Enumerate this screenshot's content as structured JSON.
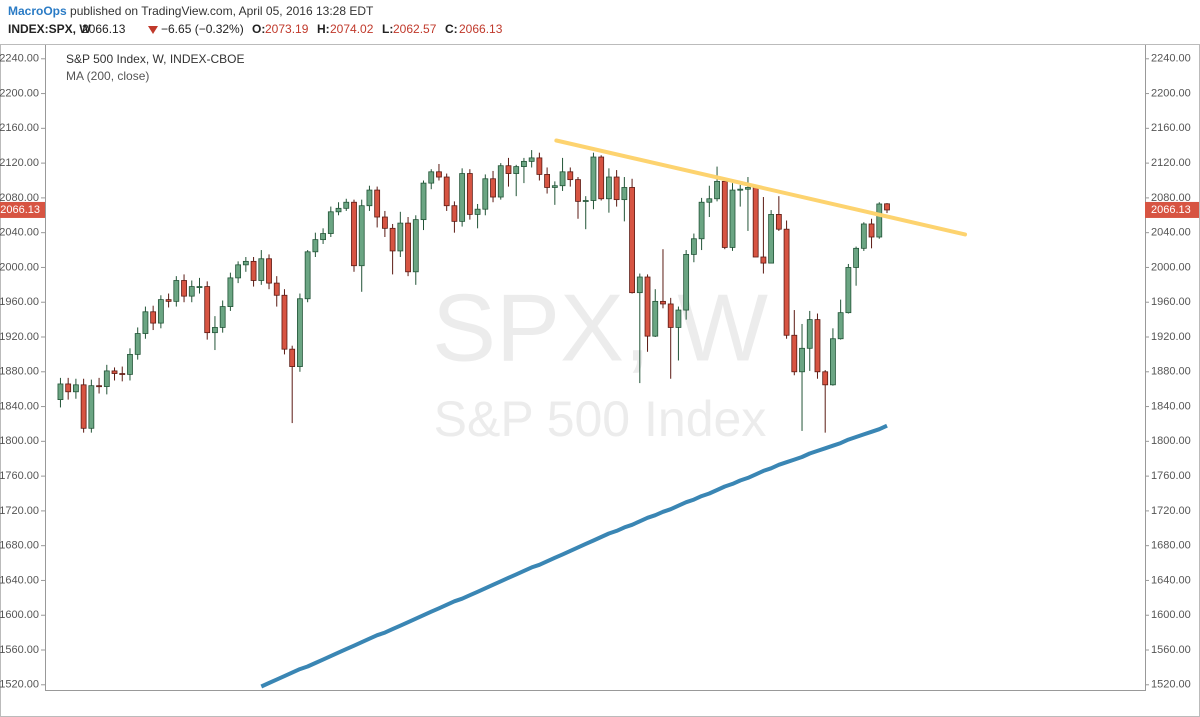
{
  "chart_data": {
    "type": "candlestick",
    "header": {
      "publisher": "MacroOps",
      "published": "published on TradingView.com, April 05, 2016 13:28 EDT",
      "symbol": "INDEX:SPX, W",
      "change": "−6.65 (−0.32%)",
      "o": "O:",
      "h": "H:",
      "l": "L:",
      "c": "C:"
    },
    "title": "S&P 500 Index, W, INDEX-CBOE",
    "watermark": {
      "symbol": "SPX, W",
      "name": "S&P 500 Index"
    },
    "up_color": "#6ba583",
    "down_color": "#d75442",
    "open": [
      1848,
      1866,
      1857,
      1865,
      1815,
      1864,
      1863,
      1881,
      1878,
      1877,
      1900,
      1924,
      1949,
      1936,
      1963,
      1961,
      1985,
      1967,
      1978,
      1978,
      1925,
      1931,
      1955,
      1988,
      2003,
      2007,
      1985,
      2010,
      1982,
      1968,
      1906,
      1886,
      1964,
      2018,
      2032,
      2039,
      2064,
      2068,
      2075,
      2002,
      2071,
      2089,
      2058,
      2045,
      2019,
      2051,
      1995,
      2055,
      2097,
      2110,
      2104,
      2071,
      2053,
      2108,
      2061,
      2067,
      2102,
      2081,
      2117,
      2108,
      2116,
      2122,
      2126,
      2107,
      2092,
      2094,
      2110,
      2101,
      2076,
      2077,
      2127,
      2079,
      2104,
      2078,
      2092,
      1971,
      1989,
      1921,
      1961,
      1958,
      1931,
      1951,
      2015,
      2033,
      2075,
      2079,
      2099,
      2023,
      2089,
      2090,
      2092,
      2012,
      2005,
      2061,
      2044,
      1922,
      1880,
      1907,
      1940,
      1880,
      1865,
      1918,
      1948,
      2000,
      2022,
      2050,
      2035,
      2073.19
    ],
    "high": [
      1873,
      1873,
      1872,
      1872,
      1871,
      1873,
      1888,
      1885,
      1886,
      1907,
      1931,
      1955,
      1956,
      1968,
      1970,
      1990,
      1992,
      1985,
      1988,
      1984,
      1944,
      1962,
      1994,
      2007,
      2012,
      2012,
      2020,
      2015,
      1990,
      1975,
      1910,
      1970,
      2020,
      2040,
      2045,
      2070,
      2075,
      2079,
      2078,
      2078,
      2094,
      2093,
      2065,
      2050,
      2064,
      2058,
      2060,
      2100,
      2113,
      2119,
      2108,
      2076,
      2114,
      2113,
      2073,
      2107,
      2111,
      2120,
      2126,
      2118,
      2126,
      2135,
      2132,
      2115,
      2099,
      2126,
      2115,
      2104,
      2082,
      2132,
      2129,
      2114,
      2112,
      2104,
      2102,
      1993,
      1992,
      1975,
      2021,
      1965,
      1955,
      2020,
      2039,
      2080,
      2094,
      2116,
      2101,
      2097,
      2095,
      2104,
      2094,
      2081,
      2066,
      2082,
      2054,
      1951,
      1935,
      1950,
      1947,
      1882,
      1930,
      1963,
      2004,
      2024,
      2052,
      2056,
      2075,
      2074.02
    ],
    "low": [
      1839,
      1848,
      1849,
      1810,
      1810,
      1855,
      1854,
      1870,
      1869,
      1870,
      1894,
      1918,
      1928,
      1930,
      1954,
      1955,
      1960,
      1960,
      1970,
      1917,
      1905,
      1925,
      1950,
      1982,
      1995,
      1978,
      1980,
      1975,
      1955,
      1900,
      1821,
      1880,
      1960,
      2012,
      2027,
      2035,
      2060,
      2065,
      1995,
      1972,
      2065,
      2046,
      2035,
      1992,
      2012,
      1990,
      1980,
      2043,
      2090,
      2100,
      2065,
      2040,
      2047,
      2055,
      2045,
      2060,
      2075,
      2078,
      2093,
      2082,
      2097,
      2115,
      2100,
      2085,
      2072,
      2088,
      2093,
      2056,
      2044,
      2067,
      2077,
      2063,
      2070,
      2053,
      1970,
      1867,
      1903,
      1920,
      1953,
      1872,
      1893,
      1940,
      2006,
      2020,
      2058,
      2076,
      2021,
      2019,
      2070,
      2042,
      2012,
      1993,
      2005,
      2042,
      1918,
      1876,
      1812,
      1881,
      1872,
      1810,
      1864,
      1917,
      1947,
      1979,
      2019,
      2022,
      2033,
      2062.57
    ],
    "close": [
      1866,
      1857,
      1865,
      1815,
      1864,
      1863,
      1881,
      1878,
      1877,
      1900,
      1924,
      1949,
      1936,
      1963,
      1961,
      1985,
      1967,
      1978,
      1978,
      1925,
      1931,
      1955,
      1988,
      2003,
      2007,
      1985,
      2010,
      1982,
      1968,
      1906,
      1886,
      1964,
      2018,
      2032,
      2039,
      2064,
      2068,
      2075,
      2002,
      2071,
      2089,
      2058,
      2045,
      2019,
      2051,
      1995,
      2055,
      2097,
      2110,
      2104,
      2071,
      2053,
      2108,
      2061,
      2067,
      2102,
      2081,
      2117,
      2108,
      2116,
      2122,
      2126,
      2107,
      2092,
      2094,
      2110,
      2101,
      2076,
      2077,
      2127,
      2079,
      2104,
      2078,
      2092,
      1971,
      1989,
      1921,
      1961,
      1958,
      1931,
      1951,
      2015,
      2033,
      2075,
      2079,
      2099,
      2023,
      2089,
      2090,
      2092,
      2012,
      2005,
      2061,
      2044,
      1922,
      1880,
      1907,
      1940,
      1880,
      1865,
      1918,
      1948,
      2000,
      2022,
      2050,
      2035,
      2073,
      2066.13
    ],
    "ma": {
      "name": "MA (200, close)",
      "color": "#3a86b4",
      "values": [
        null,
        null,
        null,
        null,
        null,
        null,
        null,
        null,
        null,
        null,
        null,
        null,
        null,
        null,
        null,
        null,
        null,
        null,
        null,
        null,
        null,
        null,
        null,
        null,
        null,
        null,
        1518,
        1522,
        1526,
        1530,
        1534,
        1538,
        1541,
        1545,
        1549,
        1553,
        1557,
        1561,
        1565,
        1569,
        1573,
        1577,
        1580,
        1584,
        1588,
        1592,
        1596,
        1600,
        1604,
        1608,
        1612,
        1616,
        1619,
        1623,
        1627,
        1631,
        1635,
        1639,
        1643,
        1647,
        1651,
        1655,
        1658,
        1662,
        1666,
        1670,
        1674,
        1678,
        1682,
        1686,
        1690,
        1694,
        1697,
        1701,
        1704,
        1708,
        1712,
        1715,
        1719,
        1722,
        1726,
        1730,
        1733,
        1737,
        1740,
        1744,
        1748,
        1751,
        1755,
        1758,
        1762,
        1766,
        1769,
        1773,
        1776,
        1779,
        1782,
        1786,
        1789,
        1792,
        1795,
        1798,
        1802,
        1805,
        1808,
        1811,
        1814,
        1818
      ]
    },
    "trendline": {
      "x": [
        64.2,
        117.1
      ],
      "y": [
        2146,
        2038
      ],
      "color": "#fdd36f"
    },
    "xlim": [
      -2,
      140.4
    ],
    "ylim": [
      1514,
      2257
    ],
    "yticks": [
      {
        "value": 1520,
        "label": "1520.00"
      },
      {
        "value": 1560,
        "label": "1560.00"
      },
      {
        "value": 1600,
        "label": "1600.00"
      },
      {
        "value": 1640,
        "label": "1640.00"
      },
      {
        "value": 1680,
        "label": "1680.00"
      },
      {
        "value": 1720,
        "label": "1720.00"
      },
      {
        "value": 1760,
        "label": "1760.00"
      },
      {
        "value": 1800,
        "label": "1800.00"
      },
      {
        "value": 1840,
        "label": "1840.00"
      },
      {
        "value": 1880,
        "label": "1880.00"
      },
      {
        "value": 1920,
        "label": "1920.00"
      },
      {
        "value": 1960,
        "label": "1960.00"
      },
      {
        "value": 2000,
        "label": "2000.00"
      },
      {
        "value": 2040,
        "label": "2040.00"
      },
      {
        "value": 2080,
        "label": "2080.00"
      },
      {
        "value": 2120,
        "label": "2120.00"
      },
      {
        "value": 2160,
        "label": "2160.00"
      },
      {
        "value": 2200,
        "label": "2200.00"
      },
      {
        "value": 2240,
        "label": "2240.00"
      }
    ]
  }
}
